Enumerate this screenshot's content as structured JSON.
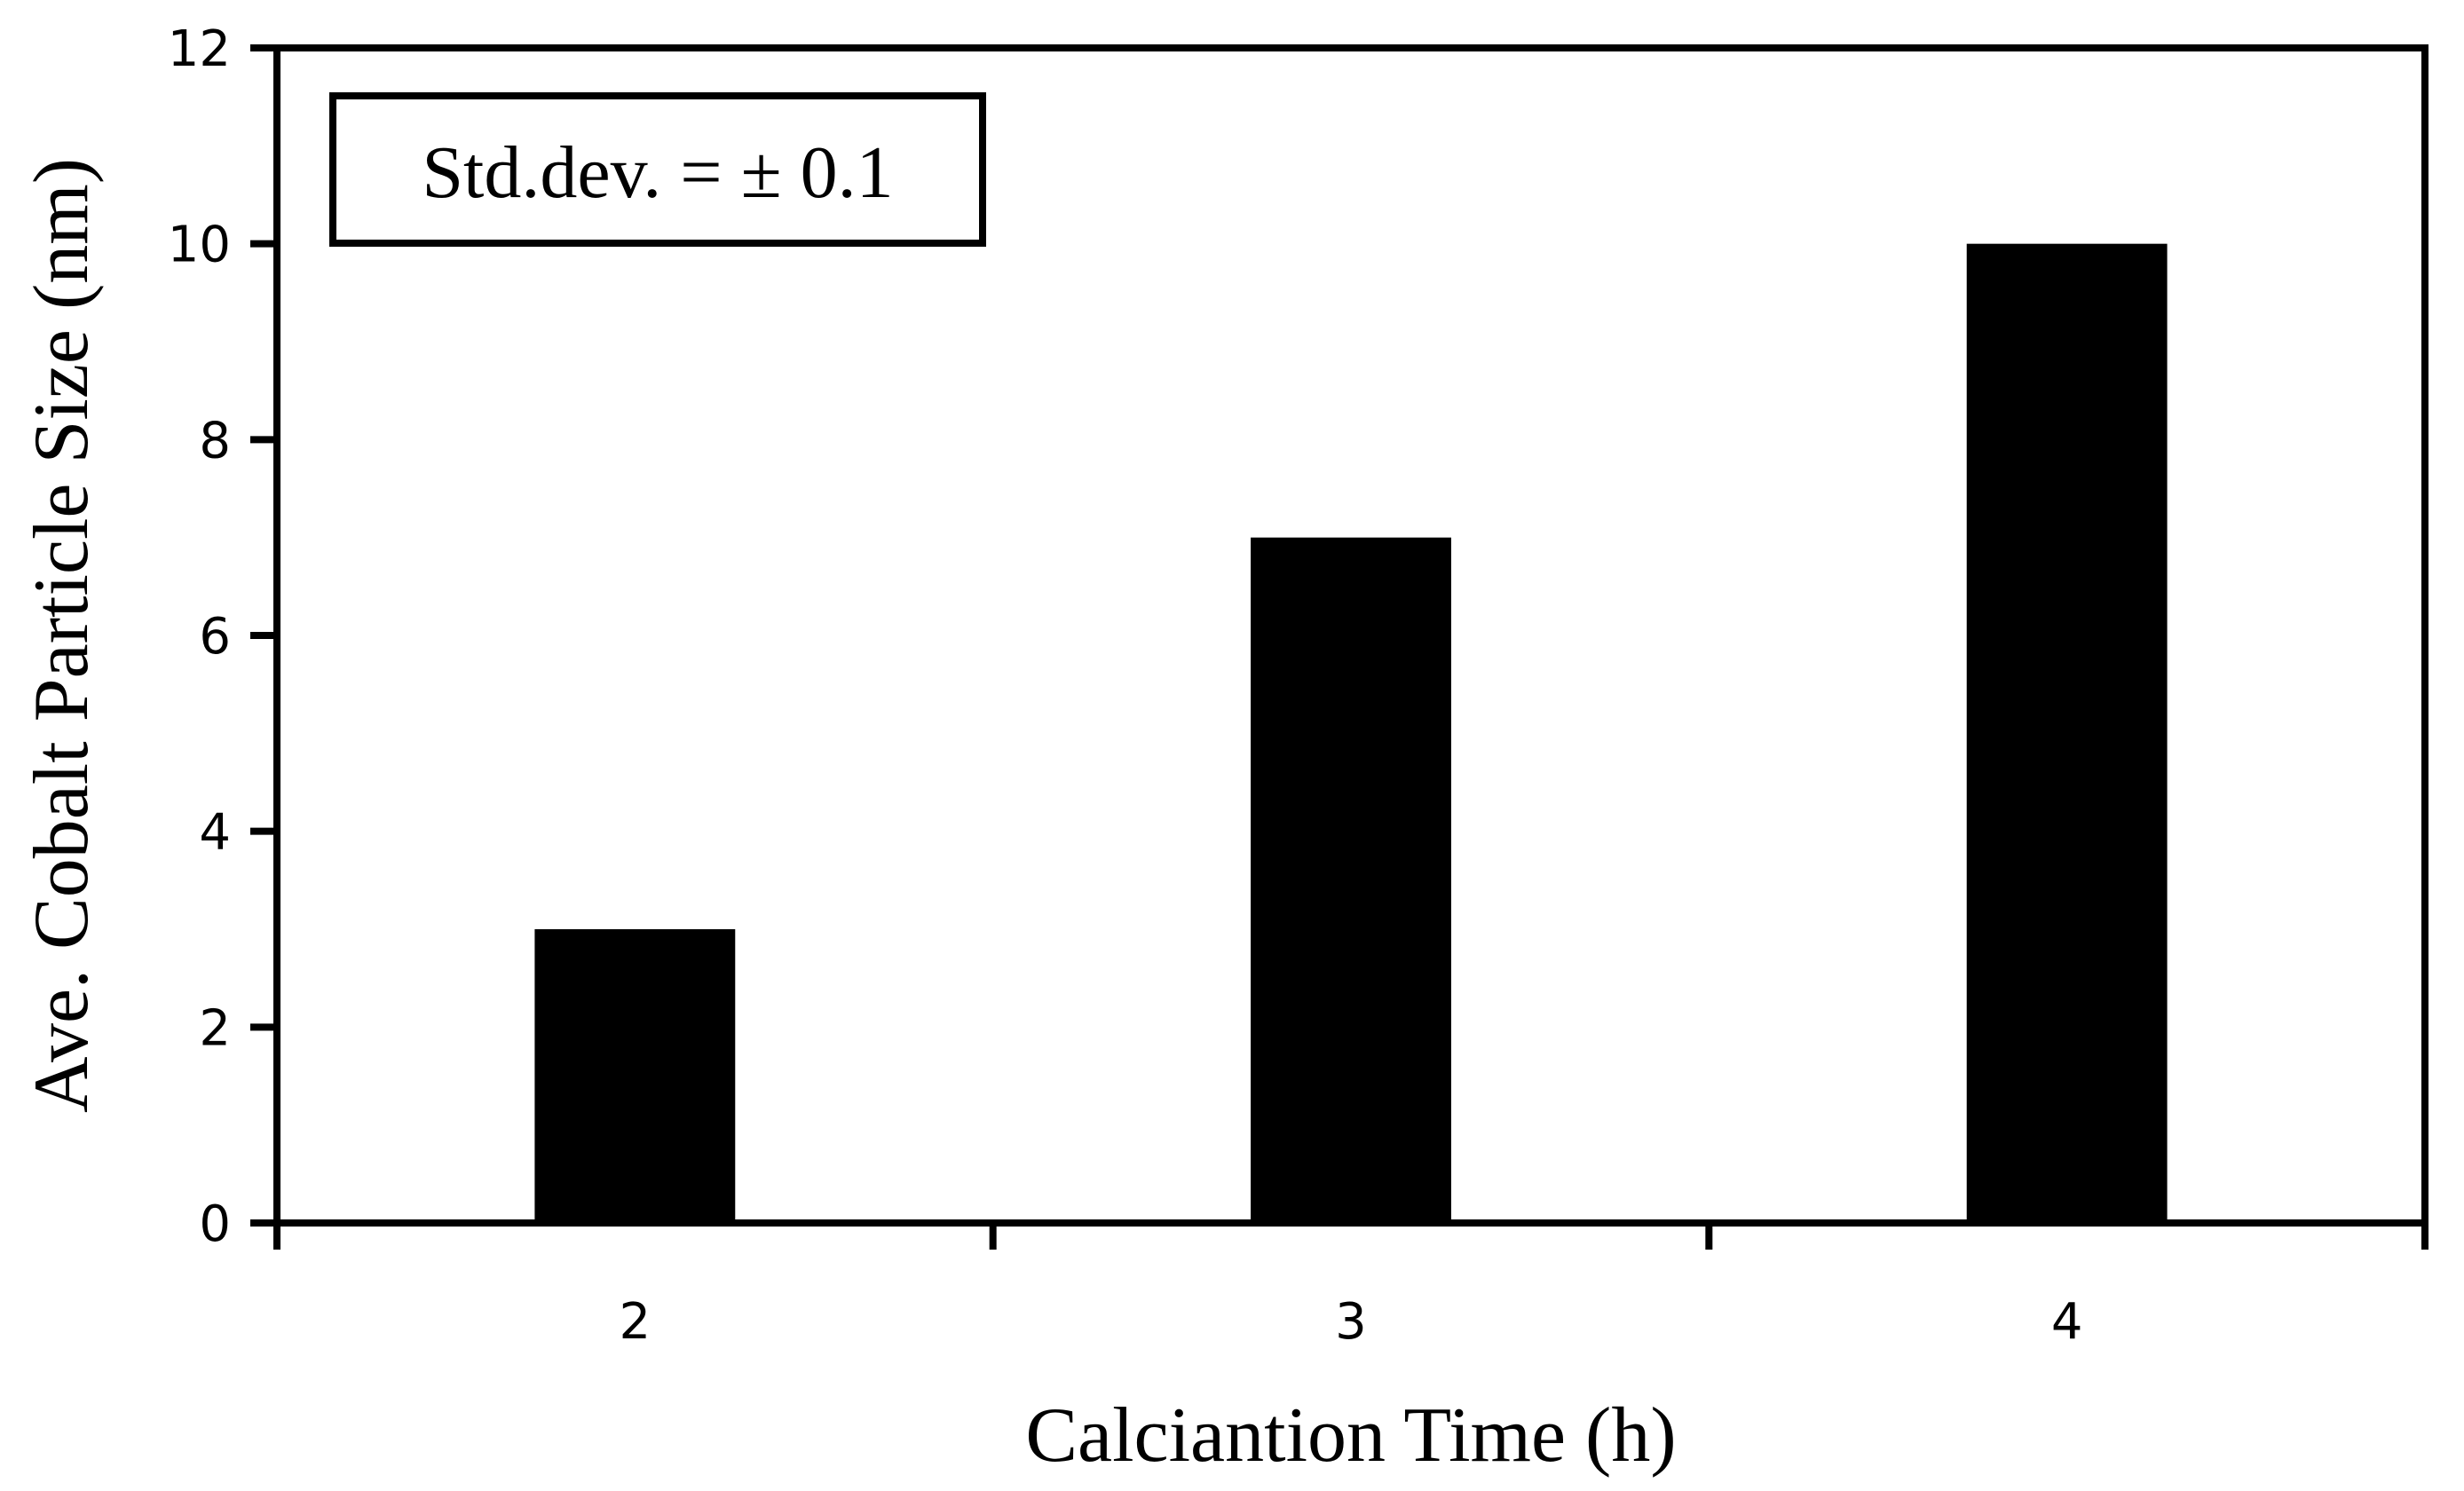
{
  "chart_data": {
    "type": "bar",
    "categories": [
      "2",
      "3",
      "4"
    ],
    "values": [
      3,
      7,
      10
    ],
    "title": "",
    "xlabel": "Calciantion  Time  (h)",
    "ylabel": "Ave.  Cobalt  Particle  Size  (nm)",
    "ylim": [
      0,
      12
    ],
    "yticks": [
      0,
      2,
      4,
      6,
      8,
      10,
      12
    ],
    "grid": false,
    "legend": "none",
    "bar_color": "#000000",
    "annotation": "Std.dev. = ± 0.1"
  }
}
